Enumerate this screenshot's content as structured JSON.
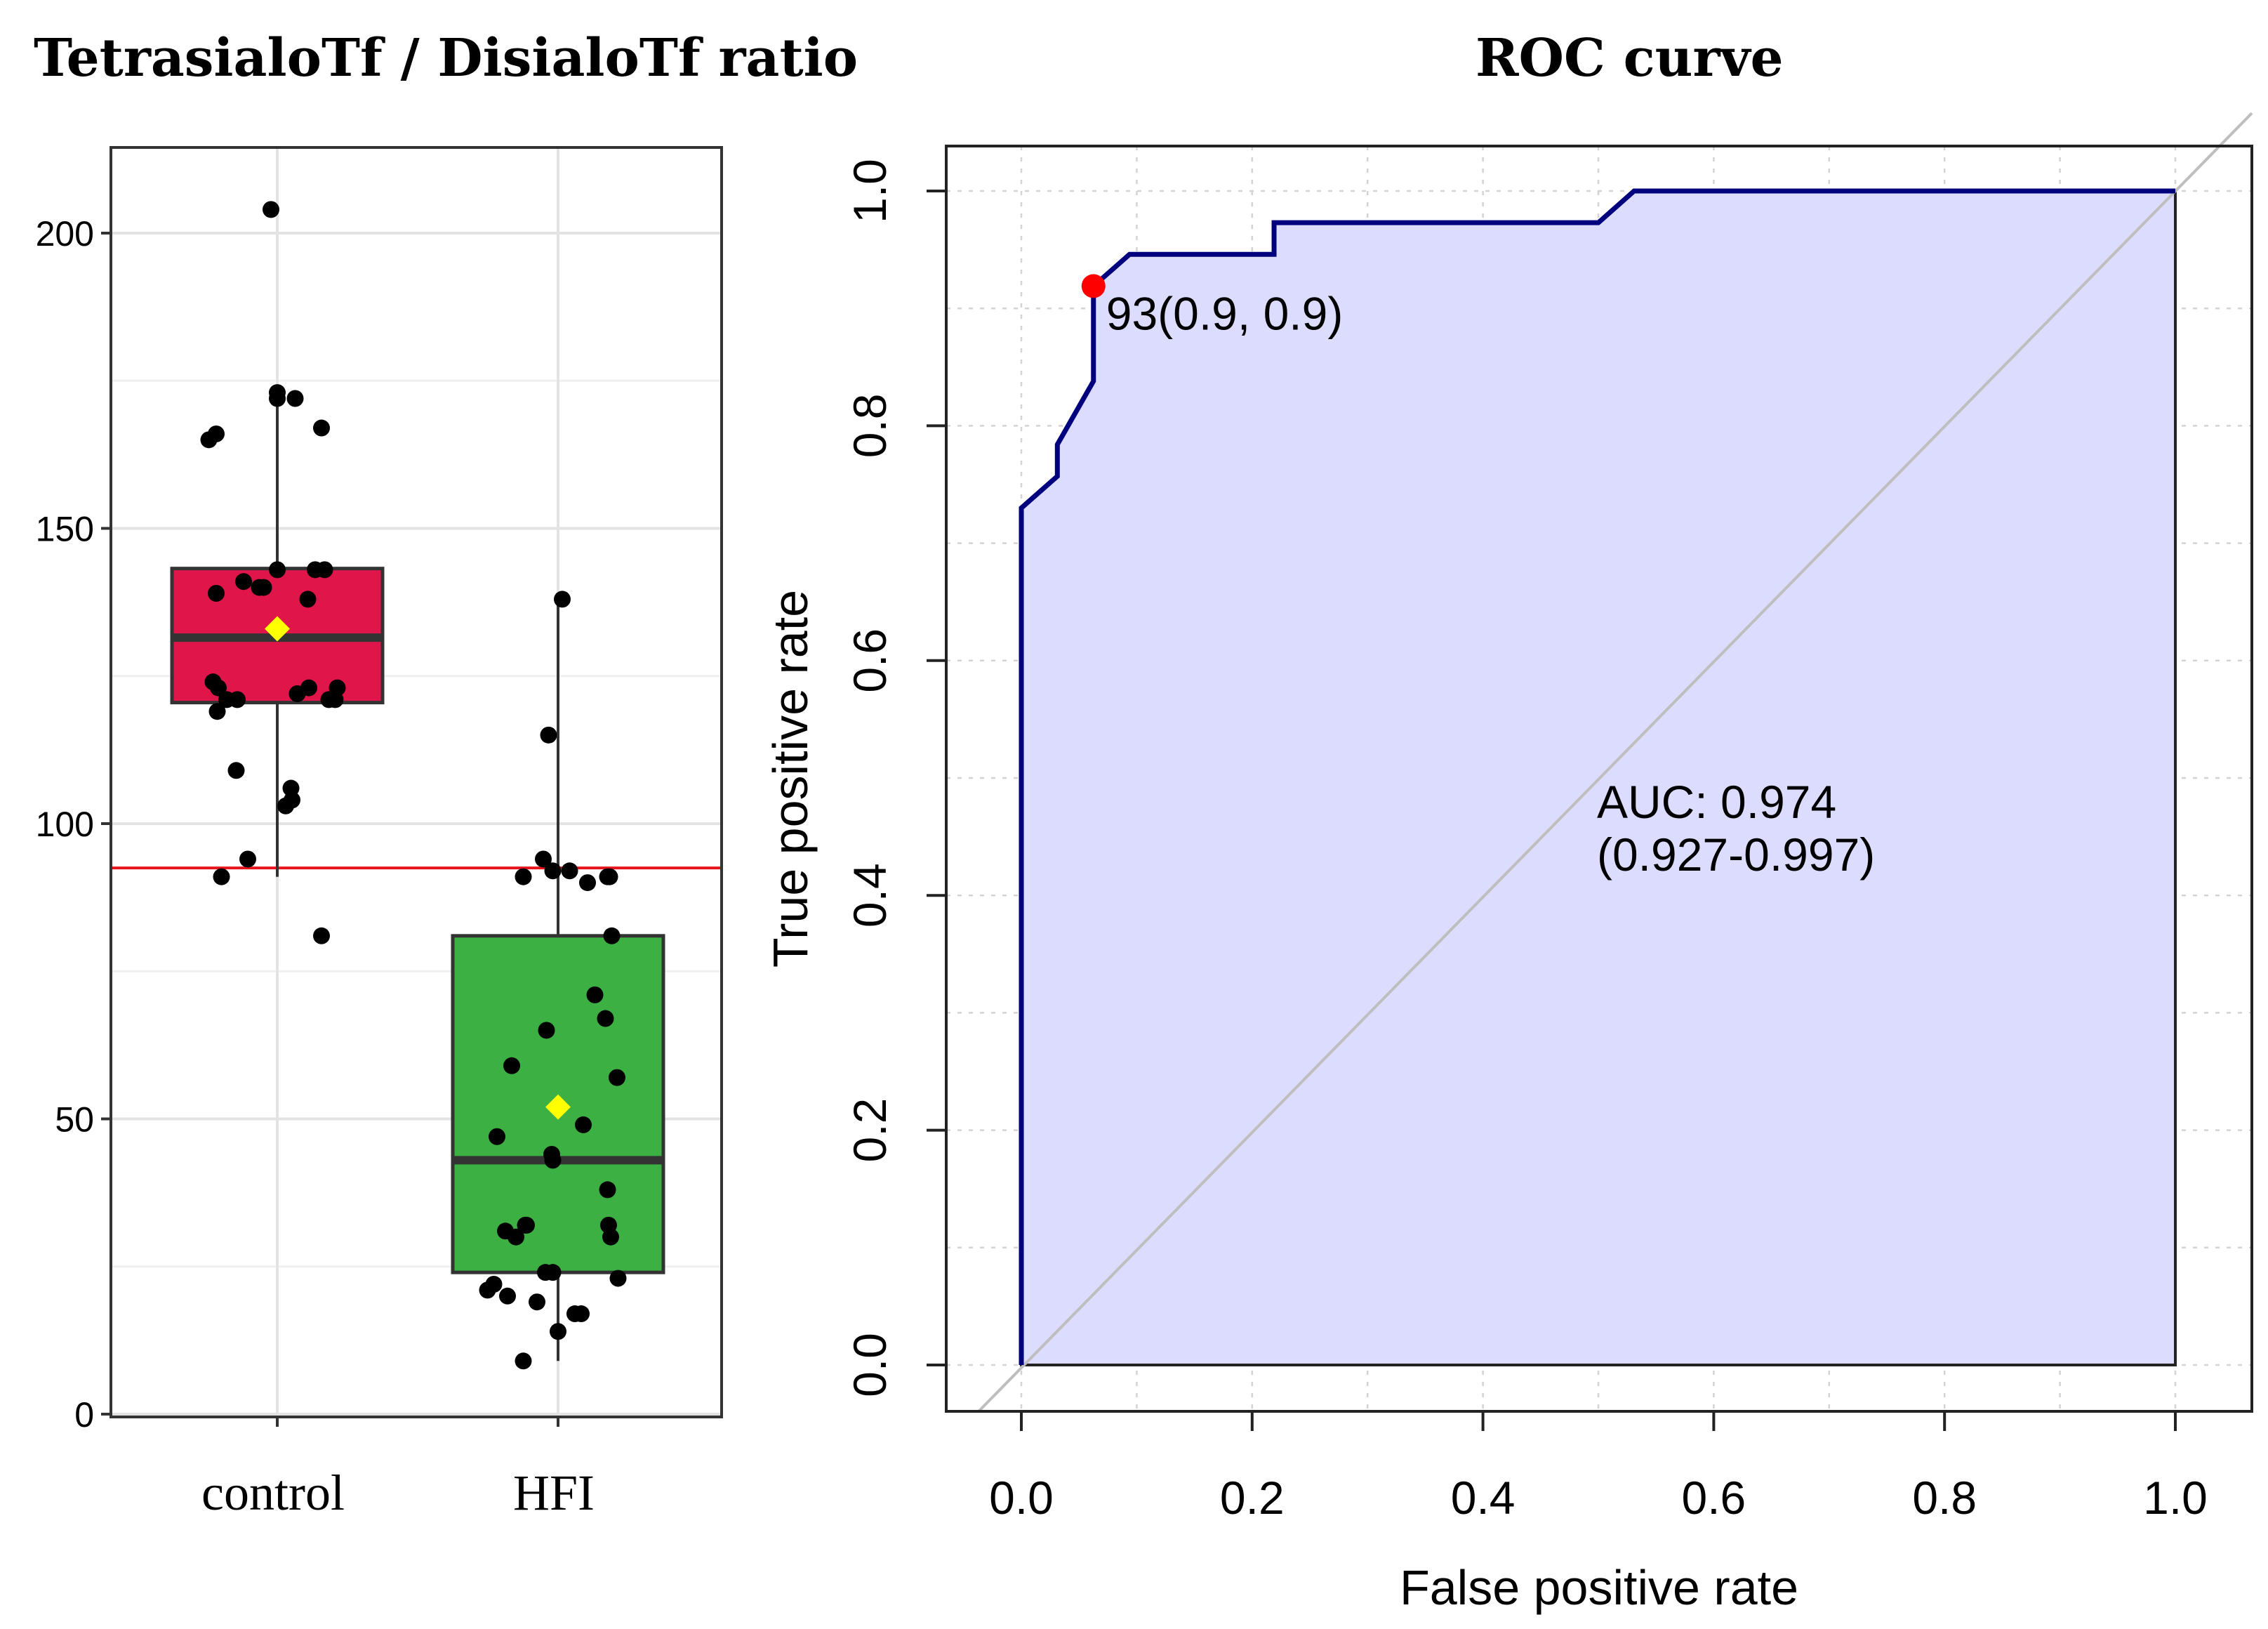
{
  "chart_data": [
    {
      "type": "box",
      "title": "TetrasialoTf / DisialoTf ratio",
      "xlabel": "",
      "ylabel": "",
      "categories": [
        "control",
        "HFI"
      ],
      "ylim": [
        0,
        215
      ],
      "yticks": [
        0,
        50,
        100,
        150,
        200
      ],
      "threshold": 92.5,
      "threshold_color": "#e8141c",
      "box_colors": [
        "#e0164a",
        "#3cb043"
      ],
      "mean_color": "#ffff00",
      "groups": [
        {
          "name": "control",
          "q1": 120.5,
          "median": 131.5,
          "q3": 143.2,
          "whisker_low": 91,
          "whisker_high": 173.5,
          "mean": 133,
          "points": [
            [
              -0.06,
              204
            ],
            [
              0.0,
              173
            ],
            [
              0.0,
              172
            ],
            [
              0.17,
              172
            ],
            [
              -0.65,
              165
            ],
            [
              -0.58,
              166
            ],
            [
              0.42,
              167
            ],
            [
              0.45,
              143
            ],
            [
              0.36,
              143
            ],
            [
              0.0,
              143
            ],
            [
              -0.32,
              141
            ],
            [
              -0.17,
              140
            ],
            [
              -0.13,
              140
            ],
            [
              -0.58,
              139
            ],
            [
              0.29,
              138
            ],
            [
              -0.61,
              124
            ],
            [
              -0.56,
              123
            ],
            [
              0.3,
              123
            ],
            [
              0.57,
              123
            ],
            [
              0.19,
              122
            ],
            [
              -0.48,
              121
            ],
            [
              -0.38,
              121
            ],
            [
              0.49,
              121
            ],
            [
              0.55,
              121
            ],
            [
              -0.57,
              119
            ],
            [
              -0.39,
              109
            ],
            [
              0.13,
              106
            ],
            [
              0.14,
              104
            ],
            [
              0.08,
              103
            ],
            [
              -0.28,
              94
            ],
            [
              -0.53,
              91
            ],
            [
              0.42,
              81
            ]
          ]
        },
        {
          "name": "HFI",
          "q1": 24,
          "median": 43,
          "q3": 81,
          "whisker_low": 9,
          "whisker_high": 137.5,
          "mean": 52,
          "points": [
            [
              0.04,
              138
            ],
            [
              -0.09,
              115
            ],
            [
              -0.14,
              94
            ],
            [
              -0.33,
              91
            ],
            [
              -0.05,
              92
            ],
            [
              0.11,
              92
            ],
            [
              0.28,
              90
            ],
            [
              0.47,
              91
            ],
            [
              0.49,
              91
            ],
            [
              0.51,
              81
            ],
            [
              0.35,
              71
            ],
            [
              0.45,
              67
            ],
            [
              -0.11,
              65
            ],
            [
              -0.44,
              59
            ],
            [
              0.56,
              57
            ],
            [
              -0.06,
              44
            ],
            [
              0.24,
              49
            ],
            [
              -0.05,
              43
            ],
            [
              -0.58,
              47
            ],
            [
              0.47,
              38
            ],
            [
              -0.5,
              31
            ],
            [
              -0.4,
              30
            ],
            [
              -0.31,
              32
            ],
            [
              -0.3,
              32
            ],
            [
              0.48,
              32
            ],
            [
              0.5,
              30
            ],
            [
              -0.67,
              21
            ],
            [
              -0.61,
              22
            ],
            [
              -0.48,
              20
            ],
            [
              -0.2,
              19
            ],
            [
              -0.12,
              24
            ],
            [
              -0.05,
              24
            ],
            [
              0.16,
              17
            ],
            [
              0.22,
              17
            ],
            [
              0.57,
              23
            ],
            [
              0.0,
              14
            ],
            [
              -0.33,
              9
            ]
          ]
        }
      ]
    },
    {
      "type": "line",
      "title": "ROC curve",
      "xlabel": "False positive rate",
      "ylabel": "True positive rate",
      "xlim": [
        -0.065,
        1.065
      ],
      "ylim": [
        -0.04,
        1.04
      ],
      "xticks": [
        "0.0",
        "0.2",
        "0.4",
        "0.6",
        "0.8",
        "1.0"
      ],
      "yticks": [
        "0.0",
        "0.2",
        "0.4",
        "0.6",
        "0.8",
        "1.0"
      ],
      "curve_color": "#00007f",
      "fill_color": "#dcdcff",
      "diagonal_color": "#bebebe",
      "series": [
        {
          "name": "ROC",
          "x": [
            0.0,
            0.0,
            0.0312,
            0.0312,
            0.0625,
            0.0625,
            0.0625,
            0.0938,
            0.219,
            0.219,
            0.5,
            0.531,
            1.0
          ],
          "y": [
            0.0,
            0.73,
            0.757,
            0.784,
            0.838,
            0.919,
            0.919,
            0.946,
            0.946,
            0.973,
            0.973,
            1.0,
            1.0
          ]
        }
      ],
      "cutoff_point": {
        "x": 0.0625,
        "y": 0.919,
        "label": "93(0.9, 0.9)",
        "color": "#ff0000"
      },
      "auc_label": "AUC: 0.974",
      "auc_ci_label": "(0.927-0.997)"
    }
  ]
}
